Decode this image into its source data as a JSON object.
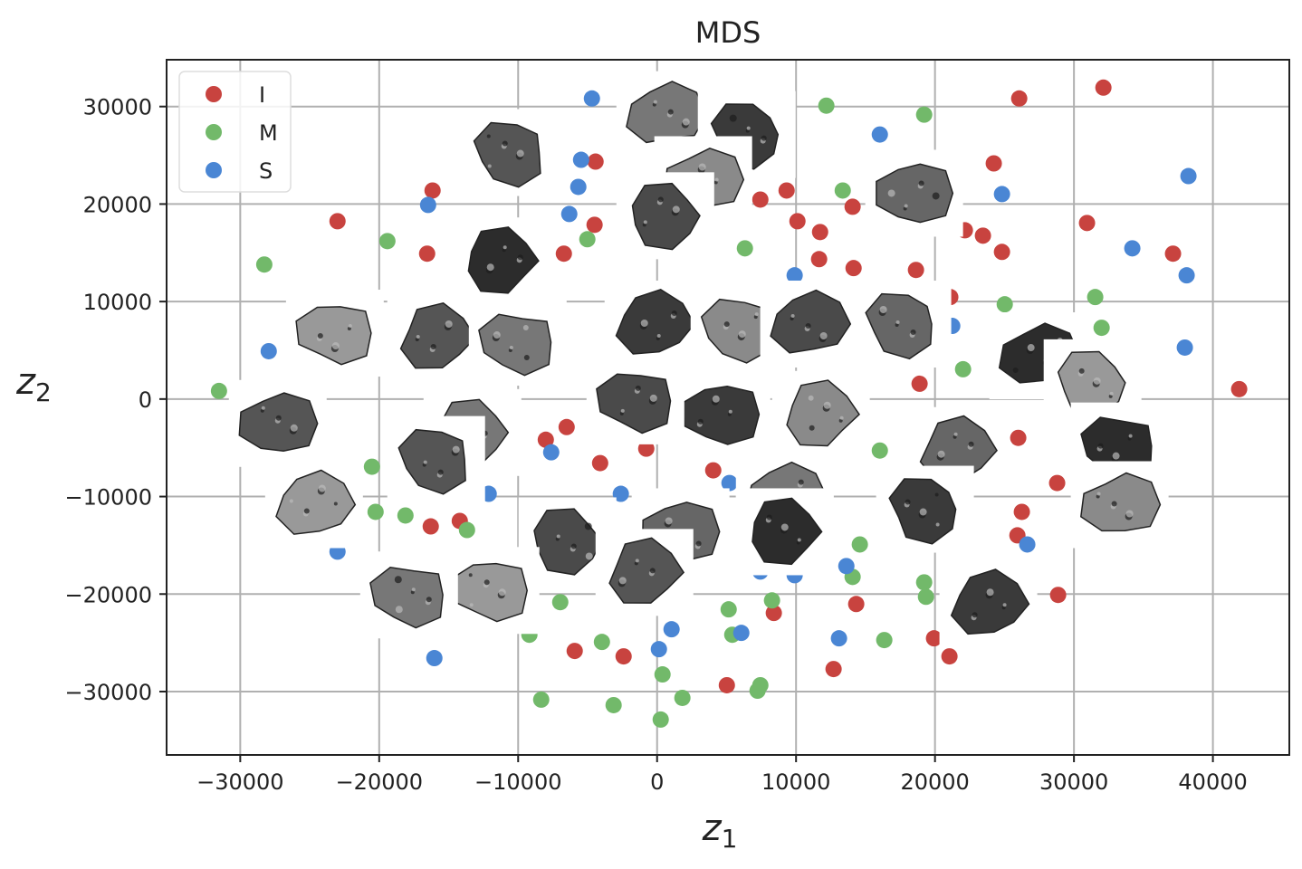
{
  "chart_data": {
    "type": "scatter",
    "title": "MDS",
    "xlabel": "z1",
    "ylabel": "z2",
    "xlim": [
      -35300,
      45500
    ],
    "ylim": [
      -36500,
      34800
    ],
    "xticks": [
      -30000,
      -20000,
      -10000,
      0,
      10000,
      20000,
      30000,
      40000
    ],
    "yticks": [
      -30000,
      -20000,
      -10000,
      0,
      10000,
      20000,
      30000
    ],
    "xtick_labels": [
      "−30000",
      "−20000",
      "−10000",
      "0",
      "10000",
      "20000",
      "30000",
      "40000"
    ],
    "ytick_labels": [
      "−30000",
      "−20000",
      "−10000",
      "0",
      "10000",
      "20000",
      "30000"
    ],
    "grid": true,
    "legend_placement": "top-left",
    "series": [
      {
        "name": "I",
        "color": "#c8433f",
        "points": [
          [
            26060,
            30830
          ],
          [
            32120,
            31940
          ],
          [
            -4430,
            24350
          ],
          [
            -16160,
            21390
          ],
          [
            -23000,
            18240
          ],
          [
            -16550,
            14910
          ],
          [
            -4500,
            17870
          ],
          [
            -6710,
            14910
          ],
          [
            7430,
            20460
          ],
          [
            9320,
            21390
          ],
          [
            10100,
            18240
          ],
          [
            11730,
            17130
          ],
          [
            11660,
            14350
          ],
          [
            14070,
            19720
          ],
          [
            14140,
            13430
          ],
          [
            18630,
            13240
          ],
          [
            22150,
            17310
          ],
          [
            23450,
            16760
          ],
          [
            24230,
            24170
          ],
          [
            24820,
            15090
          ],
          [
            30940,
            18060
          ],
          [
            37130,
            14910
          ],
          [
            41890,
            1020
          ],
          [
            18890,
            1570
          ],
          [
            21100,
            10460
          ],
          [
            25990,
            -3980
          ],
          [
            28790,
            -8610
          ],
          [
            26250,
            -11570
          ],
          [
            25930,
            -13980
          ],
          [
            28860,
            -20090
          ],
          [
            19930,
            -24540
          ],
          [
            21040,
            -26390
          ],
          [
            14330,
            -21020
          ],
          [
            12700,
            -27690
          ],
          [
            8400,
            -21940
          ],
          [
            5020,
            -29350
          ],
          [
            -2410,
            -26390
          ],
          [
            -5930,
            -25830
          ],
          [
            -4100,
            -6570
          ],
          [
            -8010,
            -4170
          ],
          [
            -6510,
            -2870
          ],
          [
            -16290,
            -13060
          ],
          [
            -14200,
            -12500
          ],
          [
            4040,
            -7310
          ],
          [
            -780,
            -5090
          ]
        ]
      },
      {
        "name": "M",
        "color": "#72b96a",
        "points": [
          [
            12180,
            30090
          ],
          [
            19220,
            29170
          ],
          [
            13360,
            21390
          ],
          [
            -5020,
            16390
          ],
          [
            -19410,
            16200
          ],
          [
            -28270,
            13800
          ],
          [
            6320,
            15460
          ],
          [
            31530,
            10460
          ],
          [
            31990,
            7310
          ],
          [
            25020,
            9720
          ],
          [
            22020,
            3060
          ],
          [
            -31530,
            830
          ],
          [
            16030,
            -5280
          ],
          [
            -20520,
            -6940
          ],
          [
            -20260,
            -11570
          ],
          [
            -18110,
            -11940
          ],
          [
            -13680,
            -13430
          ],
          [
            14590,
            -14910
          ],
          [
            14070,
            -18240
          ],
          [
            19220,
            -18800
          ],
          [
            19350,
            -20280
          ],
          [
            8270,
            -20650
          ],
          [
            5150,
            -21570
          ],
          [
            5410,
            -24170
          ],
          [
            16350,
            -24720
          ],
          [
            -3970,
            -24910
          ],
          [
            390,
            -28240
          ],
          [
            1820,
            -30650
          ],
          [
            7430,
            -29350
          ],
          [
            7230,
            -29910
          ],
          [
            -3130,
            -31390
          ],
          [
            -8340,
            -30830
          ],
          [
            260,
            -32870
          ],
          [
            -6970,
            -20830
          ],
          [
            -20590,
            -17130
          ],
          [
            -9190,
            -24170
          ]
        ]
      },
      {
        "name": "S",
        "color": "#4a86d4",
        "points": [
          [
            -4690,
            30830
          ],
          [
            -1890,
            30460
          ],
          [
            16030,
            27130
          ],
          [
            24820,
            21020
          ],
          [
            38240,
            22870
          ],
          [
            34200,
            15460
          ],
          [
            38110,
            12690
          ],
          [
            37980,
            5280
          ],
          [
            -5470,
            24540
          ],
          [
            -5670,
            21760
          ],
          [
            -6320,
            18980
          ],
          [
            -16480,
            19910
          ],
          [
            9900,
            12690
          ],
          [
            21240,
            7500
          ],
          [
            -27950,
            4910
          ],
          [
            -4100,
            1390
          ],
          [
            -4360,
            -1200
          ],
          [
            -7620,
            -5460
          ],
          [
            -12120,
            -9720
          ],
          [
            -2610,
            -9720
          ],
          [
            7430,
            -17690
          ],
          [
            9900,
            -18060
          ],
          [
            13620,
            -17130
          ],
          [
            26640,
            -14910
          ],
          [
            6060,
            -23980
          ],
          [
            1040,
            -23610
          ],
          [
            130,
            -25650
          ],
          [
            13090,
            -24540
          ],
          [
            -16030,
            -26570
          ],
          [
            -23000,
            -15650
          ],
          [
            5210,
            -8610
          ]
        ]
      }
    ],
    "image_thumbnails": [
      [
        -10490,
        25280
      ],
      [
        590,
        29170
      ],
      [
        6450,
        27130
      ],
      [
        3320,
        22500
      ],
      [
        590,
        18800
      ],
      [
        18500,
        21110
      ],
      [
        -11210,
        14170
      ],
      [
        -23190,
        6760
      ],
      [
        -15900,
        6300
      ],
      [
        -10030,
        5830
      ],
      [
        -260,
        7690
      ],
      [
        5930,
        7220
      ],
      [
        10940,
        7690
      ],
      [
        17650,
        7690
      ],
      [
        27430,
        4440
      ],
      [
        31340,
        1670
      ],
      [
        -27300,
        -2500
      ],
      [
        -13290,
        -3430
      ],
      [
        4630,
        -1570
      ],
      [
        11790,
        -1570
      ],
      [
        -1560,
        -190
      ],
      [
        21560,
        -5280
      ],
      [
        33290,
        -4810
      ],
      [
        -24690,
        -10830
      ],
      [
        -15900,
        -6200
      ],
      [
        9190,
        -9910
      ],
      [
        19280,
        -11300
      ],
      [
        33290,
        -10830
      ],
      [
        -6450,
        -14540
      ],
      [
        1690,
        -13610
      ],
      [
        9190,
        -13610
      ],
      [
        -11990,
        -19630
      ],
      [
        -910,
        -17780
      ],
      [
        -17850,
        -20090
      ],
      [
        23840,
        -21020
      ]
    ]
  }
}
